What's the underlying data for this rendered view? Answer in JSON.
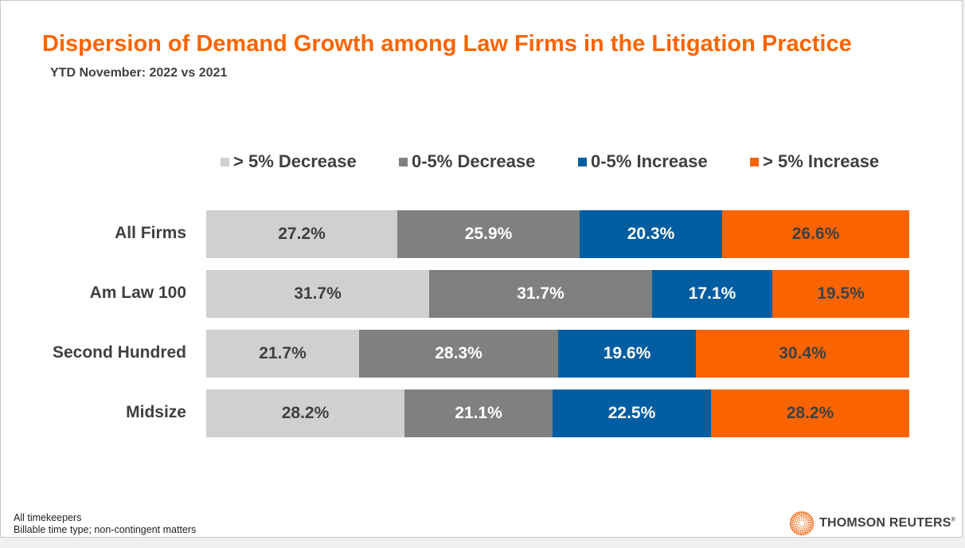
{
  "chart_data": {
    "type": "bar",
    "stacked": true,
    "orientation": "horizontal",
    "normalized": true,
    "title": "Dispersion of Demand Growth among Law Firms in the Litigation Practice",
    "subtitle": "YTD November: 2022 vs 2021",
    "categories": [
      "All Firms",
      "Am Law 100",
      "Second Hundred",
      "Midsize"
    ],
    "series": [
      {
        "name": "> 5% Decrease",
        "color": "#D0D0D0",
        "text_color": "#404040",
        "values": [
          27.2,
          31.7,
          21.7,
          28.2
        ],
        "labels": [
          "27.2%",
          "31.7%",
          "21.7%",
          "28.2%"
        ]
      },
      {
        "name": "0-5% Decrease",
        "color": "#808080",
        "text_color": "#FFFFFF",
        "values": [
          25.9,
          31.7,
          28.3,
          21.1
        ],
        "labels": [
          "25.9%",
          "31.7%",
          "28.3%",
          "21.1%"
        ]
      },
      {
        "name": "0-5% Increase",
        "color": "#005DA2",
        "text_color": "#FFFFFF",
        "values": [
          20.3,
          17.1,
          19.6,
          22.5
        ],
        "labels": [
          "20.3%",
          "17.1%",
          "19.6%",
          "22.5%"
        ]
      },
      {
        "name": "> 5% Increase",
        "color": "#FA6400",
        "text_color": "#404040",
        "values": [
          26.6,
          19.5,
          30.4,
          28.2
        ],
        "labels": [
          "26.6%",
          "19.5%",
          "30.4%",
          "28.2%"
        ]
      }
    ],
    "legend_position": "top",
    "grid": false,
    "xlabel": "",
    "ylabel": ""
  },
  "footnote": [
    "All timekeepers",
    "Billable time type; non-contingent matters"
  ],
  "logo": {
    "text": "THOMSON REUTERS",
    "mark": "®"
  }
}
